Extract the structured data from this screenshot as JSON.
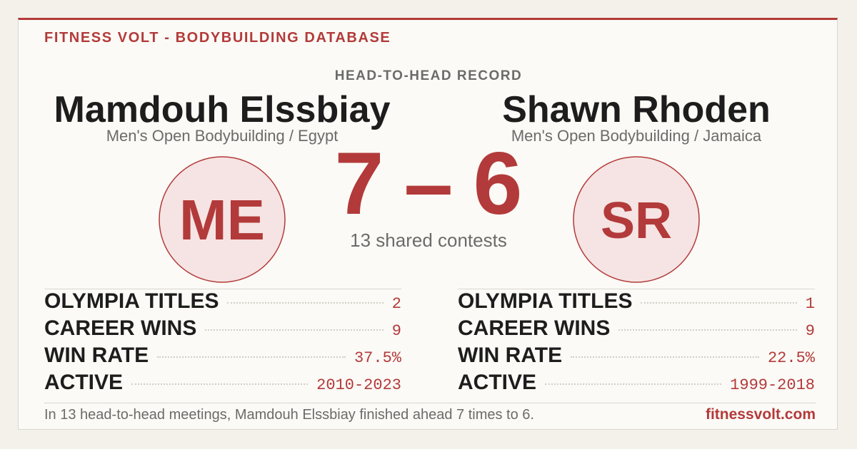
{
  "header": {
    "brand": "FITNESS VOLT - BODYBUILDING DATABASE",
    "title": "HEAD-TO-HEAD RECORD"
  },
  "athletes": [
    {
      "name": "Mamdouh Elssbiay",
      "subtitle": "Men's Open Bodybuilding / Egypt",
      "initials": "ME",
      "stats": [
        {
          "label": "OLYMPIA TITLES",
          "value": 2
        },
        {
          "label": "CAREER WINS",
          "value": 9
        },
        {
          "label": "WIN RATE",
          "value": "37.5%"
        },
        {
          "label": "ACTIVE",
          "value": "2010-2023"
        }
      ]
    },
    {
      "name": "Shawn Rhoden",
      "subtitle": "Men's Open Bodybuilding / Jamaica",
      "initials": "SR",
      "stats": [
        {
          "label": "OLYMPIA TITLES",
          "value": 1
        },
        {
          "label": "CAREER WINS",
          "value": 9
        },
        {
          "label": "WIN RATE",
          "value": "22.5%"
        },
        {
          "label": "ACTIVE",
          "value": "1999-2018"
        }
      ]
    }
  ],
  "score": {
    "left": 7,
    "separator": "–",
    "right": 6,
    "caption": "13 shared contests"
  },
  "footer": {
    "note": "In 13 head-to-head meetings, Mamdouh Elssbiay finished ahead 7 times to 6.",
    "site": "fitnessvolt.com"
  }
}
